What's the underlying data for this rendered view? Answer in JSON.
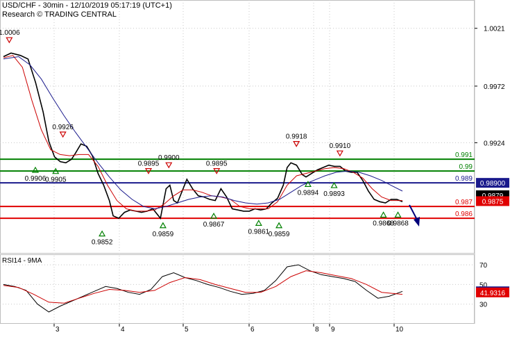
{
  "header": {
    "title": "USD/CHF - 30min - 12/10/2019 05:17:19 (UTC+1)",
    "source": "Research © TRADING CENTRAL"
  },
  "colors": {
    "price": "#000000",
    "fast_ma": "#cc0000",
    "slow_ma": "#1a1a8c",
    "support_line": "#e00000",
    "resistance_line": "#008000",
    "pivot_line": "#1a1a8c",
    "arrow": "#00007a",
    "marker_green": "#008000",
    "marker_red": "#cc0000",
    "grid": "#c8c8c8"
  },
  "chart_data": [
    {
      "type": "line",
      "panel": "price",
      "title": "",
      "ylim": [
        0.983,
        1.0045
      ],
      "y_ticks": [
        1.0021,
        0.9972,
        0.9924
      ],
      "x_ticks": [
        "3",
        "4",
        "5",
        "6",
        "8",
        "9",
        "10"
      ],
      "grid": true,
      "series": [
        {
          "name": "",
          "role": "price",
          "points": [
            [
              0,
              0.9997
            ],
            [
              4,
              1.0
            ],
            [
              9,
              0.9998
            ],
            [
              13,
              0.9995
            ],
            [
              17,
              0.9975
            ],
            [
              21,
              0.995
            ],
            [
              24,
              0.9925
            ],
            [
              27,
              0.9912
            ],
            [
              30,
              0.9908
            ],
            [
              33,
              0.9907
            ],
            [
              36,
              0.991
            ],
            [
              38,
              0.9915
            ],
            [
              41,
              0.9923
            ],
            [
              44,
              0.9921
            ],
            [
              47,
              0.9913
            ],
            [
              50,
              0.9898
            ],
            [
              53,
              0.9888
            ],
            [
              56,
              0.9875
            ],
            [
              58,
              0.9862
            ],
            [
              61,
              0.986
            ],
            [
              64,
              0.9865
            ],
            [
              67,
              0.9867
            ],
            [
              70,
              0.9866
            ],
            [
              73,
              0.9865
            ],
            [
              76,
              0.9866
            ],
            [
              79,
              0.9868
            ],
            [
              82,
              0.9862
            ],
            [
              83,
              0.986
            ],
            [
              86,
              0.9885
            ],
            [
              88,
              0.9888
            ],
            [
              90,
              0.9875
            ],
            [
              92,
              0.9873
            ],
            [
              95,
              0.9885
            ],
            [
              97,
              0.9893
            ],
            [
              100,
              0.9885
            ],
            [
              103,
              0.9879
            ],
            [
              106,
              0.9878
            ],
            [
              109,
              0.9876
            ],
            [
              112,
              0.9875
            ],
            [
              115,
              0.9885
            ],
            [
              118,
              0.9878
            ],
            [
              121,
              0.9868
            ],
            [
              124,
              0.9867
            ],
            [
              127,
              0.9866
            ],
            [
              130,
              0.9866
            ],
            [
              133,
              0.9868
            ],
            [
              136,
              0.9867
            ],
            [
              139,
              0.9868
            ],
            [
              142,
              0.9873
            ],
            [
              145,
              0.9877
            ],
            [
              148,
              0.9888
            ],
            [
              150,
              0.9903
            ],
            [
              152,
              0.9907
            ],
            [
              155,
              0.9905
            ],
            [
              158,
              0.9897
            ],
            [
              160,
              0.9895
            ],
            [
              163,
              0.9898
            ],
            [
              166,
              0.9901
            ],
            [
              169,
              0.9903
            ],
            [
              172,
              0.9905
            ],
            [
              175,
              0.9904
            ],
            [
              178,
              0.9904
            ],
            [
              181,
              0.99
            ],
            [
              184,
              0.9899
            ],
            [
              187,
              0.9899
            ],
            [
              190,
              0.9892
            ],
            [
              193,
              0.9883
            ],
            [
              196,
              0.9876
            ],
            [
              199,
              0.9874
            ],
            [
              202,
              0.9873
            ],
            [
              205,
              0.9876
            ],
            [
              208,
              0.9876
            ],
            [
              211,
              0.9874
            ]
          ]
        },
        {
          "name": "",
          "role": "fast-ma",
          "points": [
            [
              0,
              0.9996
            ],
            [
              5,
              0.9998
            ],
            [
              10,
              0.9988
            ],
            [
              15,
              0.996
            ],
            [
              20,
              0.9935
            ],
            [
              25,
              0.9918
            ],
            [
              30,
              0.9914
            ],
            [
              35,
              0.9913
            ],
            [
              40,
              0.9914
            ],
            [
              45,
              0.9914
            ],
            [
              50,
              0.9904
            ],
            [
              55,
              0.9888
            ],
            [
              60,
              0.9875
            ],
            [
              65,
              0.9868
            ],
            [
              70,
              0.9866
            ],
            [
              75,
              0.9866
            ],
            [
              80,
              0.9867
            ],
            [
              85,
              0.9872
            ],
            [
              90,
              0.9879
            ],
            [
              95,
              0.9884
            ],
            [
              100,
              0.9884
            ],
            [
              105,
              0.9882
            ],
            [
              110,
              0.9879
            ],
            [
              115,
              0.9878
            ],
            [
              120,
              0.9876
            ],
            [
              125,
              0.987
            ],
            [
              130,
              0.9868
            ],
            [
              135,
              0.9868
            ],
            [
              140,
              0.9868
            ],
            [
              145,
              0.9874
            ],
            [
              150,
              0.9888
            ],
            [
              155,
              0.9896
            ],
            [
              160,
              0.9898
            ],
            [
              165,
              0.99
            ],
            [
              170,
              0.9902
            ],
            [
              175,
              0.9903
            ],
            [
              180,
              0.9902
            ],
            [
              185,
              0.9899
            ],
            [
              190,
              0.9894
            ],
            [
              195,
              0.9885
            ],
            [
              200,
              0.9878
            ],
            [
              205,
              0.9875
            ],
            [
              211,
              0.9875
            ]
          ]
        },
        {
          "name": "",
          "role": "slow-ma",
          "points": [
            [
              0,
              0.9995
            ],
            [
              8,
              0.9997
            ],
            [
              14,
              0.999
            ],
            [
              20,
              0.9978
            ],
            [
              26,
              0.9962
            ],
            [
              32,
              0.9947
            ],
            [
              38,
              0.9933
            ],
            [
              44,
              0.992
            ],
            [
              50,
              0.9907
            ],
            [
              56,
              0.9895
            ],
            [
              62,
              0.9884
            ],
            [
              68,
              0.9876
            ],
            [
              74,
              0.987
            ],
            [
              80,
              0.9868
            ],
            [
              86,
              0.987
            ],
            [
              92,
              0.9873
            ],
            [
              98,
              0.9876
            ],
            [
              104,
              0.9878
            ],
            [
              110,
              0.9879
            ],
            [
              116,
              0.9878
            ],
            [
              122,
              0.9875
            ],
            [
              128,
              0.9873
            ],
            [
              134,
              0.9872
            ],
            [
              140,
              0.9873
            ],
            [
              146,
              0.9876
            ],
            [
              152,
              0.9882
            ],
            [
              158,
              0.9888
            ],
            [
              164,
              0.9892
            ],
            [
              170,
              0.9896
            ],
            [
              176,
              0.9899
            ],
            [
              182,
              0.99
            ],
            [
              188,
              0.9899
            ],
            [
              194,
              0.9896
            ],
            [
              200,
              0.9892
            ],
            [
              206,
              0.9887
            ],
            [
              211,
              0.9883
            ]
          ]
        }
      ],
      "hlines": [
        {
          "label": "0.991",
          "value": 0.991,
          "kind": "resistance"
        },
        {
          "label": "0.99",
          "value": 0.99,
          "kind": "resistance"
        },
        {
          "label": "0.989",
          "value": 0.989,
          "kind": "pivot"
        },
        {
          "label": "0.987",
          "value": 0.987,
          "kind": "support"
        },
        {
          "label": "0.986",
          "value": 0.986,
          "kind": "support"
        }
      ],
      "price_boxes": [
        {
          "label": "0.98900",
          "value": 0.989,
          "bg": "#1a1a8c",
          "fg": "#ffffff"
        },
        {
          "label": "0.9879",
          "value": 0.98795,
          "bg": "#000000",
          "fg": "#ffffff"
        },
        {
          "label": "0.9875",
          "value": 0.98745,
          "bg": "#e00000",
          "fg": "#ffffff"
        }
      ],
      "annotations": [
        {
          "text": "1.0006",
          "x": 4,
          "y": 1.0006,
          "marker": "down"
        },
        {
          "text": "0.9926",
          "x": 41,
          "y": 0.9926,
          "marker": "down"
        },
        {
          "text": "0.9906",
          "x": 22,
          "y": 0.9906,
          "marker": "up"
        },
        {
          "text": "0.9905",
          "x": 36,
          "y": 0.9905,
          "marker": "up"
        },
        {
          "text": "0.9852",
          "x": 68,
          "y": 0.9852,
          "marker": "up"
        },
        {
          "text": "0.9895",
          "x": 100,
          "y": 0.9895,
          "marker": "down"
        },
        {
          "text": "0.9900",
          "x": 114,
          "y": 0.99,
          "marker": "down"
        },
        {
          "text": "0.9859",
          "x": 110,
          "y": 0.9859,
          "marker": "up"
        },
        {
          "text": "0.9895",
          "x": 147,
          "y": 0.9895,
          "marker": "down"
        },
        {
          "text": "0.9867",
          "x": 145,
          "y": 0.9867,
          "marker": "up"
        },
        {
          "text": "0.9861",
          "x": 176,
          "y": 0.9861,
          "marker": "up"
        },
        {
          "text": "0.9859",
          "x": 190,
          "y": 0.9859,
          "marker": "up"
        },
        {
          "text": "0.9918",
          "x": 202,
          "y": 0.9918,
          "marker": "down"
        },
        {
          "text": "0.9894",
          "x": 210,
          "y": 0.9894,
          "marker": "up"
        },
        {
          "text": "0.9910",
          "x": 232,
          "y": 0.991,
          "marker": "down"
        },
        {
          "text": "0.9893",
          "x": 228,
          "y": 0.9893,
          "marker": "up"
        },
        {
          "text": "0.9868",
          "x": 262,
          "y": 0.9868,
          "marker": "up"
        },
        {
          "text": "0.9868",
          "x": 272,
          "y": 0.9868,
          "marker": "up"
        }
      ]
    },
    {
      "type": "line",
      "panel": "rsi",
      "title": "RSI14 - 9MA",
      "ylim": [
        10,
        80
      ],
      "y_ticks": [
        70,
        50,
        30
      ],
      "grid": true,
      "series": [
        {
          "name": "",
          "role": "rsi",
          "points": [
            [
              0,
              50
            ],
            [
              6,
              48
            ],
            [
              12,
              44
            ],
            [
              18,
              30
            ],
            [
              24,
              22
            ],
            [
              30,
              28
            ],
            [
              36,
              33
            ],
            [
              42,
              38
            ],
            [
              48,
              43
            ],
            [
              54,
              48
            ],
            [
              60,
              46
            ],
            [
              66,
              42
            ],
            [
              72,
              40
            ],
            [
              78,
              45
            ],
            [
              84,
              58
            ],
            [
              90,
              62
            ],
            [
              96,
              57
            ],
            [
              102,
              54
            ],
            [
              108,
              50
            ],
            [
              114,
              47
            ],
            [
              120,
              43
            ],
            [
              126,
              40
            ],
            [
              132,
              41
            ],
            [
              138,
              44
            ],
            [
              144,
              54
            ],
            [
              150,
              68
            ],
            [
              156,
              70
            ],
            [
              162,
              64
            ],
            [
              168,
              60
            ],
            [
              174,
              58
            ],
            [
              180,
              56
            ],
            [
              186,
              53
            ],
            [
              192,
              44
            ],
            [
              198,
              36
            ],
            [
              204,
              38
            ],
            [
              211,
              43
            ]
          ]
        },
        {
          "name": "",
          "role": "rsi-ma",
          "points": [
            [
              0,
              49
            ],
            [
              8,
              47
            ],
            [
              16,
              40
            ],
            [
              24,
              32
            ],
            [
              32,
              31
            ],
            [
              40,
              36
            ],
            [
              48,
              41
            ],
            [
              56,
              45
            ],
            [
              64,
              44
            ],
            [
              72,
              42
            ],
            [
              80,
              44
            ],
            [
              88,
              52
            ],
            [
              96,
              57
            ],
            [
              104,
              55
            ],
            [
              112,
              50
            ],
            [
              120,
              46
            ],
            [
              128,
              42
            ],
            [
              136,
              42
            ],
            [
              144,
              48
            ],
            [
              152,
              58
            ],
            [
              160,
              64
            ],
            [
              168,
              62
            ],
            [
              176,
              59
            ],
            [
              184,
              56
            ],
            [
              192,
              50
            ],
            [
              200,
              42
            ],
            [
              211,
              40
            ]
          ]
        }
      ],
      "price_boxes": [
        {
          "label": "43.0552",
          "value": 43.0552,
          "bg": "#1a1a8c",
          "fg": "#ffffff"
        },
        {
          "label": "41.9316",
          "value": 41.9316,
          "bg": "#e00000",
          "fg": "#ffffff"
        }
      ]
    }
  ]
}
